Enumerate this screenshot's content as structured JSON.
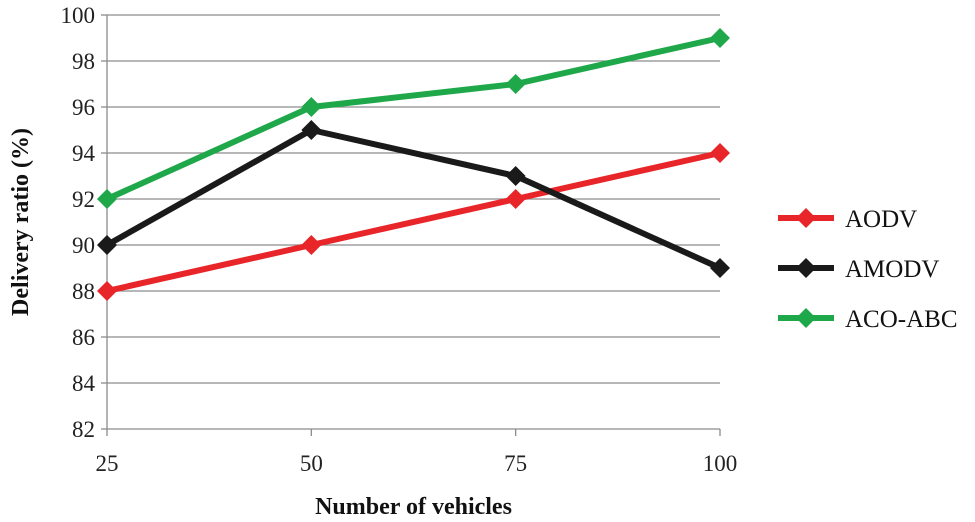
{
  "chart_data": {
    "type": "line",
    "title": "",
    "xlabel": "Number of vehicles",
    "ylabel": "Delivery ratio (%)",
    "x": [
      25,
      50,
      75,
      100
    ],
    "categories": [
      "25",
      "50",
      "75",
      "100"
    ],
    "ylim": [
      82,
      100
    ],
    "yticks": [
      82,
      84,
      86,
      88,
      90,
      92,
      94,
      96,
      98,
      100
    ],
    "grid": "horizontal",
    "legend_position": "right",
    "series": [
      {
        "name": "AODV",
        "values": [
          88,
          90,
          92,
          94
        ],
        "color": "#e8262a",
        "marker": "diamond"
      },
      {
        "name": "AMODV",
        "values": [
          90,
          95,
          93,
          89
        ],
        "color": "#1a1a1a",
        "marker": "diamond"
      },
      {
        "name": "ACO-ABC",
        "values": [
          92,
          96,
          97,
          99
        ],
        "color": "#1fa84a",
        "marker": "diamond"
      }
    ]
  }
}
